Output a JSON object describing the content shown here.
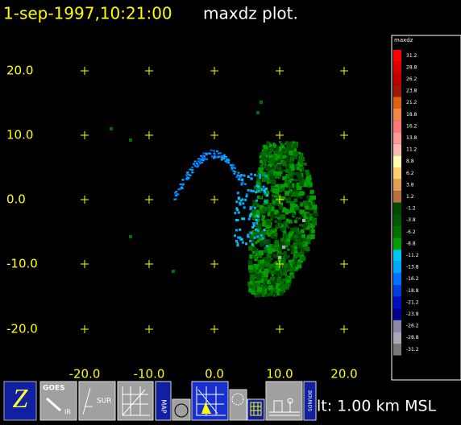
{
  "header": {
    "timestamp": "1-sep-1997,10:21:00",
    "plot_name": "maxdz plot."
  },
  "plot": {
    "y_labels": [
      "20.0",
      "10.0",
      "0.0",
      "-10.0",
      "-20.0"
    ],
    "x_labels": [
      "-20.0",
      "-10.0",
      "0.0",
      "10.0",
      "20.0"
    ]
  },
  "colorbar": {
    "title": "maxdz",
    "labels": [
      "31.2",
      "28.8",
      "26.2",
      "23.8",
      "21.2",
      "18.8",
      "16.2",
      "13.8",
      "11.2",
      "8.8",
      "6.2",
      "3.8",
      "1.2",
      "-1.2",
      "-3.8",
      "-6.2",
      "-8.8",
      "-11.2",
      "-13.8",
      "-16.2",
      "-18.8",
      "-21.2",
      "-23.8",
      "-26.2",
      "-28.8",
      "-31.2"
    ],
    "colors": [
      "#ff0000",
      "#e00000",
      "#c00000",
      "#a01800",
      "#e06010",
      "#f08848",
      "#ff7878",
      "#ff9898",
      "#ffb8b8",
      "#ffffb0",
      "#ffd070",
      "#e0a050",
      "#b87040",
      "#004800",
      "#005800",
      "#007000",
      "#00a000",
      "#00c8f0",
      "#00a8ff",
      "#0070ff",
      "#0040e0",
      "#0010c0",
      "#000090",
      "#8888a8",
      "#a8a8b8",
      "#787878"
    ]
  },
  "toolbar": {
    "buttons": [
      "Z",
      "GOES",
      "IR",
      "SUR",
      "MAP",
      "BOUNDS"
    ],
    "status": "lt: 1.00 km MSL"
  }
}
